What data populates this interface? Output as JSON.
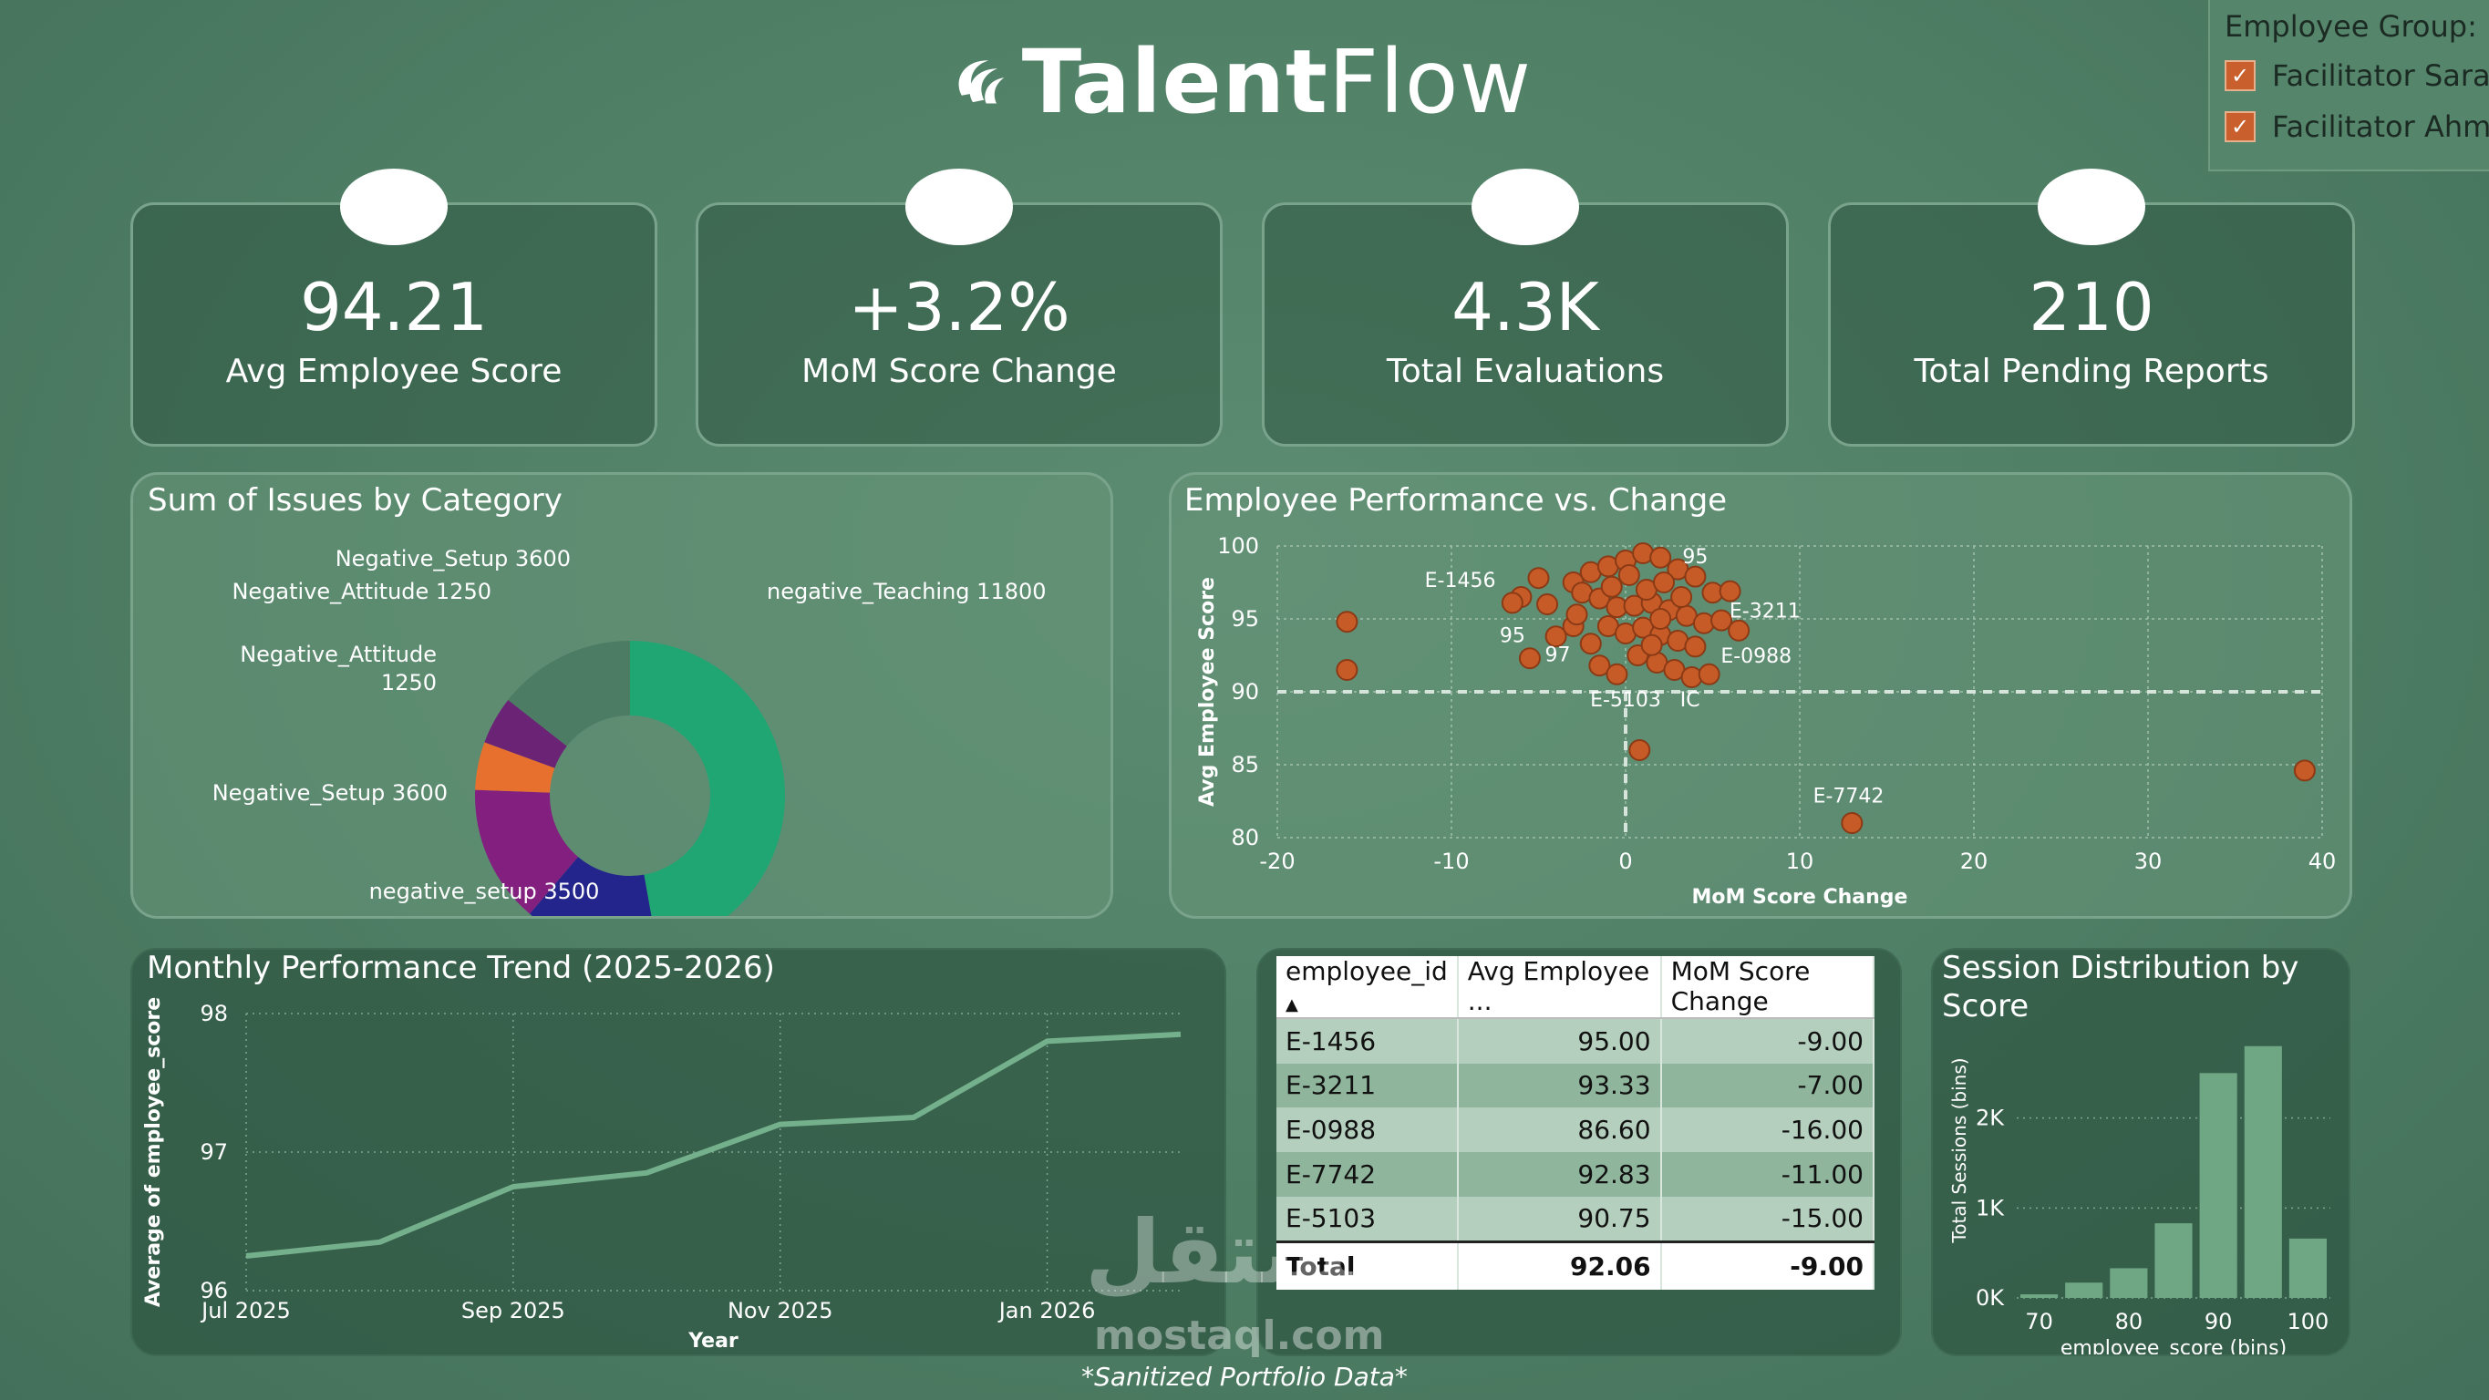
{
  "brand": {
    "bold": "Talent",
    "light": "Flow"
  },
  "filter": {
    "title": "Employee Group:",
    "options": [
      "Facilitator Sarah",
      "Facilitator Ahmed"
    ]
  },
  "kpis": [
    {
      "value": "94.21",
      "label": "Avg Employee Score"
    },
    {
      "value": "+3.2%",
      "label": "MoM Score Change"
    },
    {
      "value": "4.3K",
      "label": "Total Evaluations"
    },
    {
      "value": "210",
      "label": "Total Pending Reports"
    }
  ],
  "donut": {
    "title": "Sum of Issues by Category",
    "chart_data": {
      "type": "pie",
      "slices": [
        {
          "label": "negative_Teaching 11800",
          "value": 11800,
          "color": "#1fa672"
        },
        {
          "label": "negative_setup 3500",
          "value": 3500,
          "color": "#23258c"
        },
        {
          "label": "Negative_Setup 3600",
          "value": 3600,
          "color": "#83207f"
        },
        {
          "label": "Negative_Attitude 1250",
          "value": 1250,
          "color": "#e8702e"
        },
        {
          "label": "Negative_Attitude 1250",
          "value": 1250,
          "color": "#6b2376"
        },
        {
          "label": "Negative_Setup 3600",
          "value": 3600,
          "color": "#4d7c64"
        }
      ]
    },
    "labels": [
      "Negative_Setup 3600",
      "Negative_Attitude 1250",
      "negative_Teaching 11800",
      "Negative_Attitude",
      "1250",
      "Negative_Setup 3600",
      "negative_setup 3500"
    ]
  },
  "scatter": {
    "title": "Employee Performance vs. Change",
    "chart_data": {
      "type": "scatter",
      "xlabel": "MoM Score Change",
      "ylabel": "Avg Employee Score",
      "xlim": [
        -20,
        40
      ],
      "ylim": [
        80,
        100
      ],
      "xticks": [
        "-20",
        "-10",
        "0",
        "10",
        "20",
        "30",
        "40"
      ],
      "yticks": [
        "80",
        "85",
        "90",
        "95",
        "100"
      ],
      "ref_x": 0,
      "ref_y": 90,
      "points": [
        [
          -16,
          94.8
        ],
        [
          -16,
          91.5
        ],
        [
          -5,
          97.8
        ],
        [
          -6,
          96.5
        ],
        [
          -6.5,
          96.1
        ],
        [
          -4.5,
          96.0
        ],
        [
          -3,
          97.5
        ],
        [
          -2,
          98.2
        ],
        [
          -1,
          98.6
        ],
        [
          0,
          99
        ],
        [
          1,
          99.5
        ],
        [
          2,
          99.2
        ],
        [
          3,
          98.4
        ],
        [
          4,
          97.9
        ],
        [
          5,
          96.8
        ],
        [
          6,
          96.9
        ],
        [
          -2.5,
          96.8
        ],
        [
          -1.5,
          96.4
        ],
        [
          -0.5,
          95.8
        ],
        [
          0.5,
          95.9
        ],
        [
          1.5,
          96.1
        ],
        [
          2.5,
          95.6
        ],
        [
          3.5,
          95.2
        ],
        [
          4.5,
          94.7
        ],
        [
          -1,
          94.5
        ],
        [
          0,
          94.0
        ],
        [
          1,
          94.4
        ],
        [
          2,
          93.9
        ],
        [
          3,
          93.5
        ],
        [
          4,
          93.1
        ],
        [
          5.5,
          94.9
        ],
        [
          6.5,
          94.2
        ],
        [
          -3,
          94.5
        ],
        [
          -2,
          93.3
        ],
        [
          -5.5,
          92.3
        ],
        [
          -4,
          93.8
        ],
        [
          -1.5,
          91.8
        ],
        [
          -0.5,
          91.2
        ],
        [
          0.7,
          92.5
        ],
        [
          1.8,
          92.0
        ],
        [
          2.8,
          91.5
        ],
        [
          3.8,
          91.0
        ],
        [
          4.8,
          91.2
        ],
        [
          0.8,
          86.0
        ],
        [
          13,
          81.0
        ],
        [
          39,
          84.6
        ],
        [
          1.2,
          97.0
        ],
        [
          2.2,
          97.5
        ],
        [
          0.2,
          98.0
        ],
        [
          -0.8,
          97.2
        ],
        [
          3.2,
          96.5
        ],
        [
          2.0,
          95.0
        ],
        [
          -2.8,
          95.3
        ],
        [
          1.5,
          93.2
        ]
      ],
      "annotations": [
        {
          "text": "E-1456",
          "x": -9.5,
          "y": 97.2
        },
        {
          "text": "95",
          "x": 4,
          "y": 98.8
        },
        {
          "text": "E-3211",
          "x": 8,
          "y": 95.1
        },
        {
          "text": "95",
          "x": -6.5,
          "y": 93.4
        },
        {
          "text": "97",
          "x": -3.9,
          "y": 92.1
        },
        {
          "text": "E-0988",
          "x": 7.5,
          "y": 92.0
        },
        {
          "text": "E-5103",
          "x": 0,
          "y": 89.0
        },
        {
          "text": "IC",
          "x": 3.7,
          "y": 89.0
        },
        {
          "text": "E-7742",
          "x": 12.8,
          "y": 82.4
        }
      ]
    }
  },
  "trend": {
    "title": "Monthly Performance Trend (2025-2026)",
    "chart_data": {
      "type": "line",
      "xlabel": "Year",
      "ylabel": "Average of employee_score",
      "ylim": [
        96,
        98
      ],
      "x": [
        "Jul 2025",
        "Aug 2025",
        "Sep 2025",
        "Oct 2025",
        "Nov 2025",
        "Dec 2025",
        "Jan 2026",
        "Feb 2026"
      ],
      "xticks": [
        "Jul 2025",
        "Sep 2025",
        "Nov 2025",
        "Jan 2026"
      ],
      "yticks": [
        "96",
        "97",
        "98"
      ],
      "values": [
        96.25,
        96.35,
        96.75,
        96.85,
        97.2,
        97.25,
        97.8,
        97.85
      ]
    }
  },
  "table": {
    "columns": [
      "employee_id",
      "Avg Employee ...",
      "MoM Score Change"
    ],
    "rows": [
      [
        "E-1456",
        "95.00",
        "-9.00"
      ],
      [
        "E-3211",
        "93.33",
        "-7.00"
      ],
      [
        "E-0988",
        "86.60",
        "-16.00"
      ],
      [
        "E-7742",
        "92.83",
        "-11.00"
      ],
      [
        "E-5103",
        "90.75",
        "-15.00"
      ]
    ],
    "total": [
      "Total",
      "92.06",
      "-9.00"
    ]
  },
  "hist": {
    "title_line1": "Session Distribution by",
    "title_line2": "Score",
    "chart_data": {
      "type": "bar",
      "xlabel": "employee_score (bins)",
      "ylabel": "Total Sessions (bins)",
      "categories": [
        "70",
        "75",
        "80",
        "85",
        "90",
        "95",
        "100"
      ],
      "values": [
        40,
        170,
        330,
        830,
        2500,
        2800,
        660
      ],
      "ylim": [
        0,
        3000
      ],
      "xticks": [
        "70",
        "80",
        "90",
        "100"
      ],
      "yticks": [
        "0K",
        "1K",
        "2K"
      ]
    }
  },
  "footer": "*Sanitized Portfolio Data*",
  "watermark": {
    "arabic": "مستقل",
    "latin": "mostaql.com"
  }
}
